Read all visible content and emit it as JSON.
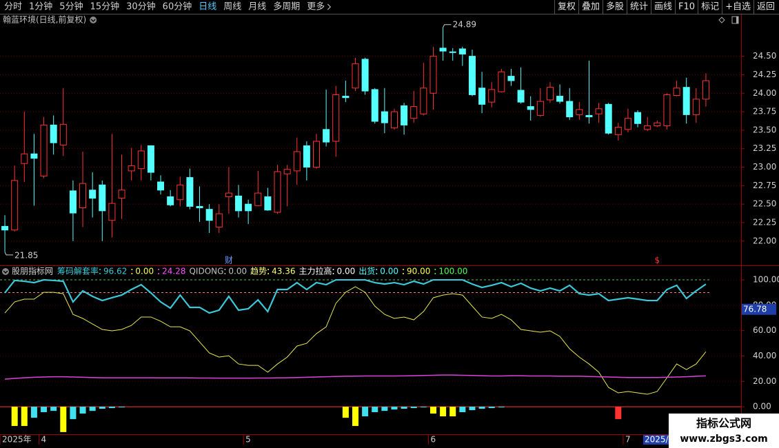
{
  "toolbar": {
    "left": [
      "分时",
      "1分钟",
      "5分钟",
      "15分钟",
      "30分钟",
      "60分钟",
      "日线",
      "周线",
      "月线",
      "多周期",
      "更多"
    ],
    "active_index": 6,
    "right": [
      "复权",
      "叠加",
      "多股",
      "统计",
      "画线",
      "F10",
      "标记",
      "+自选",
      "返回"
    ]
  },
  "chart_data": [
    {
      "type": "candlestick",
      "title": "翰蓝环境(日线,前复权)",
      "categories": [
        "2025年",
        null,
        null,
        null,
        "4",
        null,
        null,
        null,
        null,
        null,
        null,
        null,
        null,
        null,
        null,
        null,
        null,
        null,
        null,
        null,
        null,
        null,
        null,
        null,
        null,
        "5",
        null,
        null,
        null,
        null,
        null,
        null,
        null,
        null,
        null,
        null,
        null,
        null,
        null,
        null,
        null,
        null,
        null,
        null,
        "6",
        null,
        null,
        null,
        null,
        null,
        null,
        null,
        null,
        null,
        null,
        null,
        null,
        null,
        null,
        null,
        null,
        null,
        null,
        null,
        "7",
        null,
        null,
        null,
        null,
        null,
        null,
        null,
        null
      ],
      "open": [
        22.2,
        22.15,
        23.05,
        23.18,
        22.88,
        23.57,
        23.3,
        22.68,
        22.45,
        22.69,
        22.76,
        22.28,
        22.58,
        22.95,
        22.98,
        23.29,
        22.8,
        22.6,
        22.56,
        22.86,
        22.47,
        22.43,
        22.19,
        22.6,
        22.61,
        22.5,
        22.48,
        22.6,
        22.39,
        22.91,
        22.95,
        23.29,
        23.0,
        23.51,
        23.35,
        23.96,
        24.07,
        24.46,
        24.05,
        23.75,
        23.53,
        23.83,
        23.66,
        23.72,
        24.0,
        24.61,
        24.56,
        24.6,
        24.5,
        24.07,
        23.88,
        24.02,
        24.23,
        24.04,
        23.82,
        23.7,
        23.91,
        23.96,
        23.89,
        23.71,
        23.7,
        23.72,
        23.85,
        23.44,
        23.51,
        23.74,
        23.51,
        23.56,
        23.56,
        23.97,
        24.08,
        23.71,
        23.92
      ],
      "high": [
        22.35,
        23.02,
        23.75,
        23.45,
        23.68,
        23.7,
        24.07,
        22.82,
        23.21,
        22.93,
        22.82,
        23.45,
        23.17,
        23.26,
        23.3,
        23.29,
        22.89,
        22.69,
        22.87,
        22.98,
        22.74,
        22.5,
        22.5,
        23.0,
        22.76,
        22.56,
        22.95,
        22.72,
        23.03,
        23.03,
        23.4,
        23.35,
        23.45,
        24.05,
        24.1,
        24.17,
        24.48,
        24.48,
        24.07,
        24.07,
        23.79,
        23.87,
        24.03,
        24.41,
        24.63,
        24.89,
        24.61,
        24.63,
        24.59,
        24.29,
        24.15,
        24.33,
        24.33,
        24.35,
        23.96,
        24.07,
        24.15,
        24.12,
        24.07,
        23.88,
        24.44,
        23.87,
        23.87,
        23.6,
        23.79,
        23.77,
        23.68,
        23.63,
        24.0,
        24.17,
        24.21,
        24.07,
        24.27
      ],
      "low": [
        21.85,
        22.13,
        22.8,
        22.48,
        22.85,
        23.17,
        23.15,
        22.0,
        22.19,
        22.32,
        22.0,
        22.05,
        22.3,
        22.82,
        22.82,
        22.82,
        22.63,
        22.47,
        22.47,
        22.43,
        22.26,
        22.11,
        22.11,
        22.37,
        22.32,
        22.23,
        22.47,
        22.41,
        22.37,
        22.47,
        22.76,
        22.82,
        22.98,
        23.28,
        23.14,
        23.88,
        24.03,
        23.98,
        23.59,
        23.46,
        23.51,
        23.44,
        23.6,
        23.7,
        23.78,
        24.44,
        24.44,
        24.37,
        23.96,
        23.73,
        23.81,
        24.01,
        24.1,
        23.86,
        23.63,
        23.68,
        23.87,
        23.86,
        23.64,
        23.64,
        23.59,
        23.6,
        23.44,
        23.36,
        23.47,
        23.54,
        23.49,
        23.54,
        23.51,
        23.96,
        23.59,
        23.6,
        23.82
      ],
      "close": [
        22.15,
        22.82,
        23.18,
        23.12,
        23.57,
        23.33,
        23.58,
        22.38,
        22.78,
        22.58,
        22.41,
        22.51,
        22.69,
        23.02,
        23.22,
        22.93,
        22.69,
        22.49,
        22.76,
        22.47,
        22.45,
        22.28,
        22.37,
        22.65,
        22.41,
        22.41,
        22.65,
        22.42,
        22.94,
        22.97,
        23.21,
        23.0,
        23.35,
        23.34,
        23.98,
        23.94,
        24.4,
        24.03,
        23.62,
        23.6,
        23.75,
        23.57,
        23.82,
        24.07,
        24.5,
        24.57,
        24.55,
        24.53,
        23.98,
        23.85,
        24.05,
        24.29,
        24.17,
        23.88,
        23.78,
        23.89,
        24.08,
        23.89,
        23.68,
        23.78,
        23.68,
        23.79,
        23.46,
        23.54,
        23.66,
        23.59,
        23.56,
        23.6,
        23.98,
        24.07,
        23.71,
        23.92,
        24.17
      ],
      "up_color": "#ff3232",
      "down_color": "#54ffff",
      "ylim": [
        21.7,
        25.0
      ],
      "yticks": [
        {
          "value": 22,
          "label": "22.00"
        },
        {
          "value": 22.25,
          "label": "22.25"
        },
        {
          "value": 22.5,
          "label": "22.50"
        },
        {
          "value": 22.75,
          "label": "22.75"
        },
        {
          "value": 23,
          "label": "23.00"
        },
        {
          "value": 23.25,
          "label": "23.25"
        },
        {
          "value": 23.5,
          "label": "23.50"
        },
        {
          "value": 23.75,
          "label": "23.75"
        },
        {
          "value": 24,
          "label": "24.00"
        },
        {
          "value": 24.25,
          "label": "24.25"
        },
        {
          "value": 24.5,
          "label": "24.50"
        }
      ],
      "grid": true,
      "max_label": 24.89,
      "min_label": 21.85,
      "event_marks": [
        null,
        null,
        null,
        null,
        null,
        null,
        null,
        null,
        null,
        null,
        null,
        null,
        null,
        null,
        null,
        null,
        null,
        null,
        null,
        null,
        null,
        null,
        null,
        {
          "label": "财",
          "color": "#6f9cff"
        },
        null,
        null,
        null,
        null,
        null,
        null,
        null,
        null,
        null,
        null,
        null,
        null,
        null,
        null,
        null,
        null,
        null,
        null,
        null,
        null,
        null,
        null,
        null,
        null,
        null,
        null,
        null,
        null,
        null,
        null,
        null,
        null,
        null,
        null,
        null,
        null,
        null,
        null,
        null,
        null,
        null,
        null,
        null,
        {
          "label": "$",
          "color": "#ff3232"
        },
        null,
        null,
        null,
        null,
        null
      ]
    },
    {
      "type": "indicator",
      "title": "股朋指标网",
      "legend": [
        {
          "name": "筹码解套率",
          "value": 96.62,
          "color": "#3cc8d8"
        },
        {
          "value": {
            "value": 0,
            "label": "0.00"
          },
          "color": "#ffff54"
        },
        {
          "value": 24.28,
          "color": "#ff54ff"
        },
        {
          "name": "QIDONG",
          "value": {
            "value": 0,
            "label": "0.00"
          },
          "color": "#c0c0c0"
        },
        {
          "name": "趋势",
          "value": 43.36,
          "color": "#ffff80"
        },
        {
          "name": "主力拉高",
          "value": {
            "value": 0,
            "label": "0.00"
          },
          "color": "#ffffff"
        },
        {
          "name": "出货",
          "value": {
            "value": 0,
            "label": "0.00"
          },
          "color": "#54ffff"
        },
        {
          "value": {
            "value": 90,
            "label": "90.00"
          },
          "color": "#ffff54",
          "hline": "#ff8080"
        },
        {
          "value": {
            "value": 100,
            "label": "100.00"
          },
          "color": "#54ff54",
          "hline": "#54c854"
        }
      ],
      "series": [
        {
          "style": "line",
          "color": "#3cc8d8",
          "width": 2.2,
          "values": [
            89.7,
            99.5,
            98.9,
            97.8,
            100,
            99.5,
            98.9,
            82.6,
            91.3,
            87,
            83.7,
            85.9,
            88,
            92.4,
            96.2,
            89.7,
            82.6,
            77.7,
            88,
            78.3,
            78.3,
            73.9,
            76.1,
            87,
            76.1,
            77.2,
            84.2,
            75,
            92.4,
            92.4,
            97.8,
            92.4,
            97.8,
            96.2,
            100,
            100,
            100,
            100,
            97.8,
            96.7,
            97.8,
            96.2,
            98.9,
            96.7,
            100,
            100,
            100,
            100,
            96.7,
            94,
            95.7,
            97.8,
            94.6,
            97.3,
            93.5,
            91.3,
            93.5,
            91.3,
            95.7,
            89.1,
            88,
            89.1,
            83.7,
            84.8,
            85.9,
            84.8,
            83.7,
            83.7,
            92.4,
            95.7,
            85.3,
            91.3,
            96.62
          ]
        },
        {
          "style": "line",
          "color": "#e8e850",
          "width": 1,
          "values": [
            73.9,
            82.6,
            84.8,
            84.8,
            90.2,
            90.2,
            89.1,
            72.8,
            69.6,
            65.2,
            60.9,
            59.8,
            60.9,
            64.1,
            70.7,
            70.7,
            67.4,
            63,
            63,
            59.8,
            51.1,
            42.4,
            39.1,
            40.2,
            33.7,
            32.6,
            32.6,
            27.2,
            33.7,
            39.1,
            47.8,
            50,
            57.6,
            63,
            81.5,
            90.2,
            94.6,
            90.2,
            79.3,
            72.8,
            69.6,
            70.7,
            68.5,
            75,
            85.9,
            88,
            89.1,
            88,
            79.3,
            70.7,
            69.6,
            72.8,
            68.5,
            60.9,
            59.8,
            58.7,
            59.8,
            55.4,
            45.7,
            39.1,
            33.7,
            27.2,
            15.2,
            10.9,
            12,
            10.9,
            9.8,
            12,
            22.8,
            33.7,
            29.3,
            33.7,
            43.36
          ]
        },
        {
          "style": "line",
          "color": "#e040e0",
          "width": 1.5,
          "values": [
            21.7,
            22.3,
            22.8,
            23.2,
            23.4,
            23.6,
            23.6,
            23.4,
            23.2,
            23.0,
            22.8,
            22.8,
            22.8,
            22.8,
            22.8,
            22.8,
            22.7,
            22.7,
            22.7,
            22.7,
            22.6,
            22.6,
            22.5,
            22.5,
            22.5,
            22.5,
            22.6,
            22.6,
            22.7,
            22.8,
            23.0,
            23.2,
            23.4,
            23.6,
            23.8,
            24.0,
            24.1,
            24.2,
            24.2,
            24.2,
            24.2,
            24.3,
            24.4,
            24.6,
            24.8,
            25.0,
            25.0,
            24.8,
            24.6,
            24.4,
            24.2,
            24.2,
            24.4,
            24.4,
            24.2,
            24.2,
            24.2,
            24.0,
            24.0,
            24.0,
            23.8,
            23.6,
            23.4,
            23.2,
            23.0,
            23.0,
            23.0,
            23.0,
            23.2,
            23.4,
            23.6,
            24.0,
            24.28
          ]
        },
        {
          "style": "bar",
          "color": "#ffff00",
          "values": [
            null,
            -15.2,
            -15.2,
            null,
            null,
            null,
            -20,
            null,
            null,
            null,
            null,
            null,
            null,
            null,
            null,
            null,
            null,
            null,
            null,
            null,
            null,
            null,
            null,
            null,
            null,
            null,
            null,
            null,
            null,
            null,
            null,
            null,
            null,
            null,
            null,
            -8.7,
            -15.2,
            null,
            null,
            null,
            null,
            null,
            null,
            null,
            -5.4,
            -7.6,
            -7.6,
            null,
            null,
            null,
            null,
            null,
            null,
            null,
            null,
            null,
            null,
            null,
            null,
            null,
            null,
            null,
            null,
            null,
            null,
            null,
            null,
            null,
            null,
            null,
            null,
            null,
            null
          ]
        },
        {
          "style": "bar",
          "color": "#40e0f0",
          "values": [
            null,
            null,
            null,
            -8.7,
            -4.3,
            -3.3,
            null,
            -9.8,
            -5.4,
            -3.3,
            -1.6,
            -1.1,
            -0.5,
            null,
            null,
            null,
            null,
            null,
            null,
            null,
            null,
            null,
            null,
            null,
            null,
            null,
            null,
            null,
            null,
            null,
            null,
            null,
            null,
            null,
            null,
            null,
            null,
            -7.6,
            -4.3,
            -3.3,
            -2.2,
            -1.6,
            -1.1,
            -0.5,
            null,
            null,
            null,
            -4.3,
            -2.7,
            -1.6,
            -1.1,
            -0.5,
            null,
            null,
            null,
            null,
            null,
            null,
            null,
            null,
            null,
            null,
            null,
            null,
            null,
            null,
            null,
            null,
            null,
            null,
            null,
            null,
            null
          ]
        },
        {
          "style": "bar",
          "color": "#ff3232",
          "values": [
            null,
            null,
            null,
            null,
            null,
            null,
            null,
            null,
            null,
            null,
            null,
            null,
            null,
            null,
            null,
            null,
            null,
            null,
            null,
            null,
            null,
            null,
            null,
            null,
            null,
            null,
            null,
            null,
            null,
            null,
            null,
            null,
            null,
            null,
            null,
            null,
            null,
            null,
            null,
            null,
            null,
            null,
            null,
            null,
            null,
            null,
            null,
            null,
            null,
            null,
            null,
            null,
            null,
            null,
            null,
            null,
            null,
            null,
            null,
            null,
            null,
            null,
            null,
            -9.8,
            null,
            null,
            null,
            null,
            null,
            null,
            null,
            null,
            null
          ]
        }
      ],
      "ylim": [
        -20.6,
        109.8
      ],
      "yticks": [
        {
          "value": 0,
          "label": "0.00"
        },
        {
          "value": 20,
          "label": "20.00"
        },
        {
          "value": 40,
          "label": "40.00"
        },
        {
          "value": 60,
          "label": "60.00"
        },
        {
          "value": 80,
          "label": "80.00"
        },
        {
          "value": 100,
          "label": "100.00"
        }
      ],
      "grid": true,
      "cursor_value": 76.78
    }
  ],
  "cursor_date": "2025/0",
  "watermark": {
    "title": "指标公式网",
    "url": "www.zbgs3.com"
  }
}
